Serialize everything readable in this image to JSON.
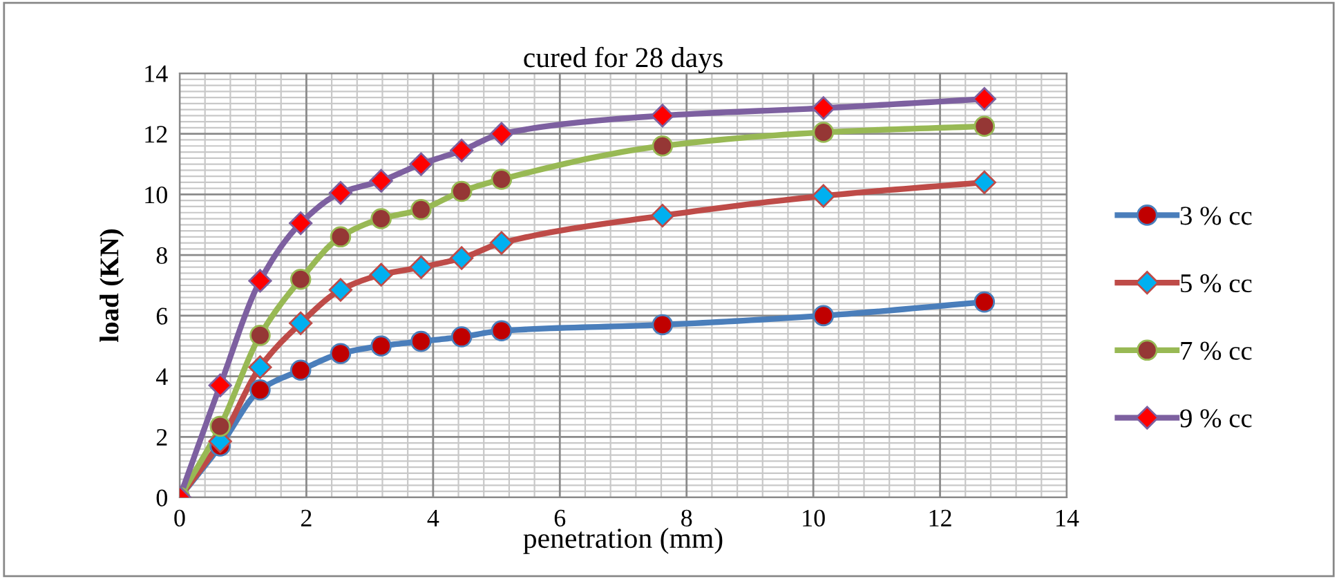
{
  "chart_data": {
    "type": "line",
    "title": "cured for 28 days",
    "xlabel": "penetration (mm)",
    "ylabel": "load (KN)",
    "x": [
      0,
      0.64,
      1.27,
      1.91,
      2.54,
      3.18,
      3.81,
      4.45,
      5.08,
      7.62,
      10.16,
      12.7
    ],
    "series": [
      {
        "name": "3 % cc",
        "color": "#4a7ebb",
        "marker": "circle",
        "values": [
          0,
          1.7,
          3.55,
          4.2,
          4.75,
          5.0,
          5.15,
          5.3,
          5.5,
          5.7,
          6.0,
          6.45
        ]
      },
      {
        "name": "5 % cc",
        "color": "#be4b48",
        "marker": "diamond",
        "values": [
          0,
          1.85,
          4.3,
          5.75,
          6.85,
          7.35,
          7.6,
          7.9,
          8.4,
          9.3,
          9.95,
          10.4
        ]
      },
      {
        "name": "7 % cc",
        "color": "#98b954",
        "marker": "circle",
        "values": [
          0,
          2.35,
          5.35,
          7.2,
          8.6,
          9.2,
          9.5,
          10.1,
          10.5,
          11.6,
          12.05,
          12.25
        ]
      },
      {
        "name": "9 % cc",
        "color": "#7d60a0",
        "marker": "diamond",
        "values": [
          0,
          3.7,
          7.15,
          9.05,
          10.05,
          10.45,
          11.0,
          11.45,
          12.0,
          12.6,
          12.85,
          13.15
        ]
      }
    ],
    "xlim": [
      0,
      14
    ],
    "xticks": [
      0,
      2,
      4,
      6,
      8,
      10,
      12,
      14
    ],
    "ylim": [
      0,
      14
    ],
    "yticks": [
      0,
      2,
      4,
      6,
      8,
      10,
      12,
      14
    ],
    "grid": true,
    "legend": "right",
    "line_style": "solid"
  }
}
